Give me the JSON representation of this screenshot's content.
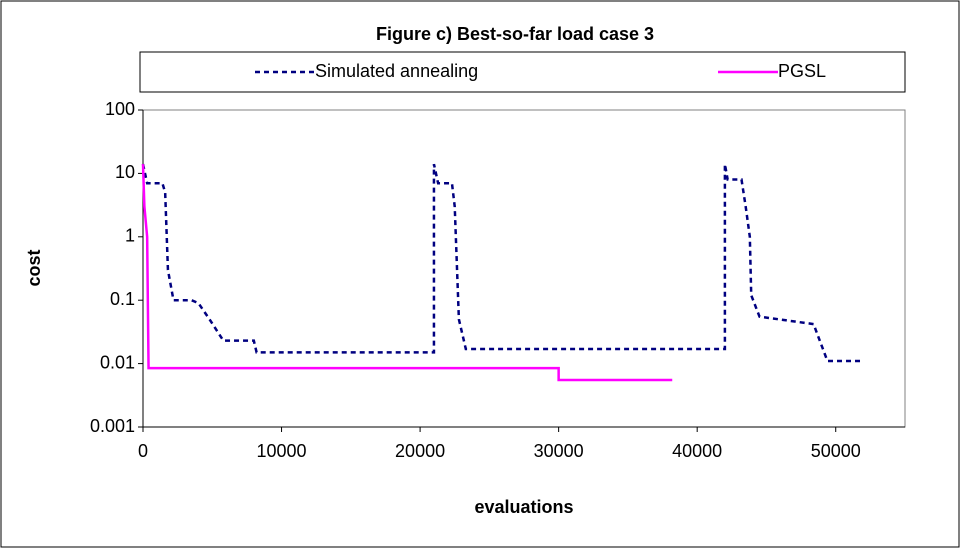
{
  "chart_data": {
    "type": "line",
    "title": "Figure c) Best-so-far load case 3",
    "x_label": "evaluations",
    "y_label": "cost",
    "xlim": [
      0,
      55000
    ],
    "xticks": [
      0,
      10000,
      20000,
      30000,
      40000,
      50000
    ],
    "ylim": [
      0.001,
      100
    ],
    "yticks": [
      0.001,
      0.01,
      0.1,
      1,
      10,
      100
    ],
    "y_scale": "log",
    "grid": false,
    "legend": "top",
    "series": [
      {
        "name": "Simulated annealing",
        "color": "#000080",
        "dash": true,
        "x": [
          0,
          300,
          1400,
          1600,
          1800,
          2200,
          3500,
          4000,
          4800,
          5800,
          8000,
          8200,
          21000,
          21000,
          21300,
          22300,
          22500,
          22800,
          23300,
          42000,
          42000,
          42200,
          43200,
          43500,
          43800,
          43900,
          44500,
          48400,
          49400,
          52000
        ],
        "values": [
          14,
          7,
          7,
          5,
          0.3,
          0.1,
          0.1,
          0.09,
          0.05,
          0.023,
          0.023,
          0.015,
          0.015,
          14,
          7,
          7,
          3,
          0.05,
          0.017,
          0.017,
          14,
          8,
          8,
          3,
          1,
          0.12,
          0.055,
          0.042,
          0.011,
          0.011
        ]
      },
      {
        "name": "PGSL",
        "color": "#ff00ff",
        "dash": false,
        "x": [
          0,
          100,
          300,
          400,
          30000,
          30000,
          38200
        ],
        "values": [
          14,
          3,
          1,
          0.0085,
          0.0085,
          0.0055,
          0.0055
        ]
      }
    ]
  }
}
